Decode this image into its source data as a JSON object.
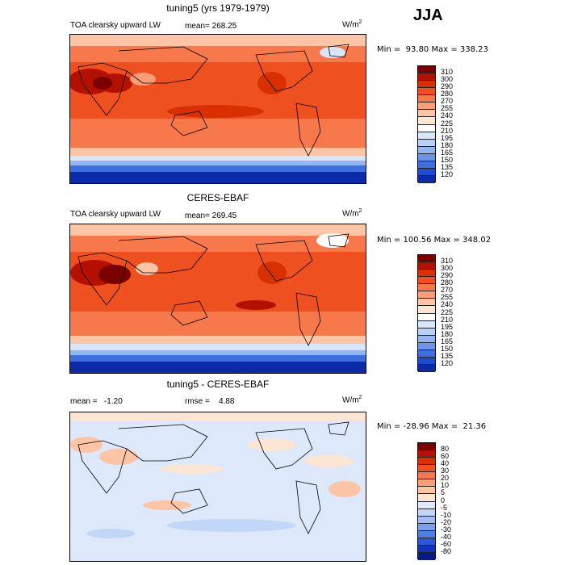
{
  "season": "JJA",
  "panels": [
    {
      "title": "tuning5 (yrs 1979-1979)",
      "variable": "TOA clearsky upward LW",
      "stat_label": "mean= 268.25",
      "rmse_label": "",
      "units_base": "W/m",
      "units_exp": "2",
      "minmax": "Min =  93.80 Max = 338.23",
      "colorbar": {
        "labels": [
          "310",
          "300",
          "290",
          "280",
          "270",
          "255",
          "240",
          "225",
          "210",
          "195",
          "180",
          "165",
          "150",
          "135",
          "120"
        ],
        "colors": [
          "#7a0000",
          "#b31000",
          "#d83000",
          "#ee5020",
          "#f7784a",
          "#fb9e76",
          "#fdc5a6",
          "#fde5d4",
          "#ffffff",
          "#d7e6fb",
          "#b8d0f6",
          "#93b6f0",
          "#6a95e8",
          "#3f6fde",
          "#1f4ccf",
          "#0a2aa8"
        ]
      }
    },
    {
      "title": "CERES-EBAF",
      "variable": "TOA clearsky upward LW",
      "stat_label": "mean= 269.45",
      "rmse_label": "",
      "units_base": "W/m",
      "units_exp": "2",
      "minmax": "Min = 100.56 Max = 348.02",
      "colorbar": {
        "labels": [
          "310",
          "300",
          "290",
          "280",
          "270",
          "255",
          "240",
          "225",
          "210",
          "195",
          "180",
          "165",
          "150",
          "135",
          "120"
        ],
        "colors": [
          "#7a0000",
          "#b31000",
          "#d83000",
          "#ee5020",
          "#f7784a",
          "#fb9e76",
          "#fdc5a6",
          "#fde5d4",
          "#ffffff",
          "#d7e6fb",
          "#b8d0f6",
          "#93b6f0",
          "#6a95e8",
          "#3f6fde",
          "#1f4ccf",
          "#0a2aa8"
        ]
      }
    },
    {
      "title": "tuning5 - CERES-EBAF",
      "variable": "",
      "stat_label": "mean =   -1.20",
      "rmse_label": "rmse =    4.88",
      "units_base": "W/m",
      "units_exp": "2",
      "minmax": "Min = -28.96 Max =  21.36",
      "colorbar": {
        "labels": [
          "80",
          "60",
          "40",
          "30",
          "20",
          "10",
          "5",
          "0",
          "-5",
          "-10",
          "-20",
          "-30",
          "-40",
          "-60",
          "-80"
        ],
        "colors": [
          "#7a0000",
          "#b31000",
          "#d83000",
          "#ee5020",
          "#f7784a",
          "#fb9e76",
          "#fdc5a6",
          "#fde5d4",
          "#dde9fb",
          "#c3d6f7",
          "#9fbdf2",
          "#7aa2ec",
          "#4f7fe3",
          "#2a58d6",
          "#1433b8",
          "#061a8a"
        ]
      }
    }
  ]
}
